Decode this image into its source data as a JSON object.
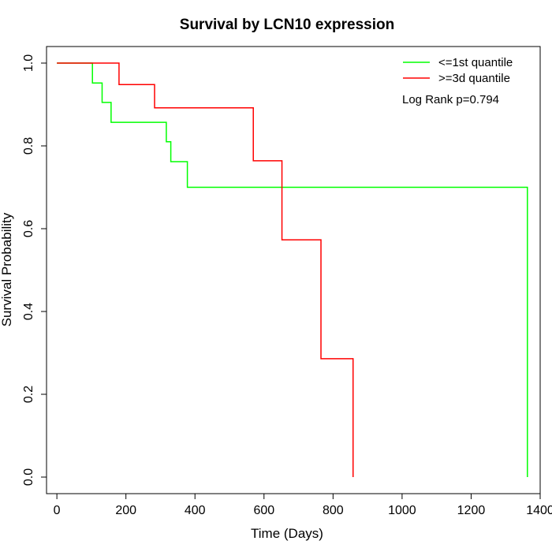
{
  "chart_data": {
    "type": "line",
    "subtype": "kaplan-meier-step",
    "title": "Survival by LCN10 expression",
    "xlabel": "Time (Days)",
    "ylabel": "Survival Probability",
    "xlim": [
      -30,
      1400
    ],
    "ylim": [
      -0.04,
      1.04
    ],
    "xticks": [
      0,
      200,
      400,
      600,
      800,
      1000,
      1200,
      1400
    ],
    "xtick_labels": [
      "0",
      "200",
      "400",
      "600",
      "800",
      "1000",
      "1200",
      "1400"
    ],
    "yticks": [
      0.0,
      0.2,
      0.4,
      0.6,
      0.8,
      1.0
    ],
    "ytick_labels": [
      "0.0",
      "0.2",
      "0.4",
      "0.6",
      "0.8",
      "1.0"
    ],
    "grid": false,
    "legend_position": "top-right",
    "annotation": "Log Rank p=0.794",
    "series": [
      {
        "name": "<=1st quantile",
        "color": "#00ff00",
        "x": [
          0,
          103,
          131,
          157,
          317,
          330,
          378,
          1363,
          1363
        ],
        "y": [
          1.0,
          0.952,
          0.905,
          0.857,
          0.81,
          0.762,
          0.7,
          0.7,
          0.0
        ]
      },
      {
        "name": ">=3d quantile",
        "color": "#ff0000",
        "x": [
          0,
          180,
          283,
          569,
          652,
          765,
          858,
          858
        ],
        "y": [
          1.0,
          0.948,
          0.892,
          0.764,
          0.573,
          0.286,
          0.286,
          0.0
        ]
      }
    ]
  }
}
